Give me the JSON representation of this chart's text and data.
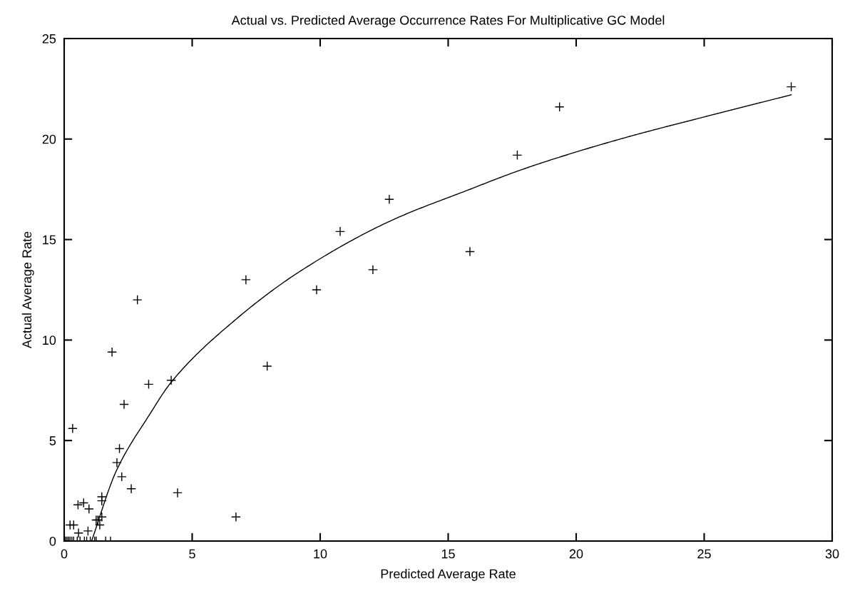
{
  "chart_data": {
    "type": "scatter",
    "title": "Actual vs. Predicted Average Occurrence Rates For Multiplicative GC Model",
    "xlabel": "Predicted Average Rate",
    "ylabel": "Actual Average Rate",
    "xlim": [
      0,
      30
    ],
    "ylim": [
      0,
      25
    ],
    "xticks": [
      0,
      5,
      10,
      15,
      20,
      25,
      30
    ],
    "yticks": [
      0,
      5,
      10,
      15,
      20,
      25
    ],
    "grid": false,
    "legend": false,
    "series": [
      {
        "marker": "cross",
        "color": "#000000",
        "x": [
          28.4,
          19.35,
          17.7,
          12.7,
          10.78,
          15.85,
          12.06,
          9.86,
          7.1,
          7.93,
          2.86,
          1.87,
          3.3,
          4.18,
          2.34,
          0.33,
          2.16,
          2.06,
          2.25,
          2.62,
          4.43,
          1.47,
          1.47,
          0.54,
          0.76,
          0.97,
          1.47,
          1.25,
          1.32,
          1.39,
          0.23,
          0.37,
          0.56,
          0.93,
          6.71,
          0.05,
          0.11,
          0.17,
          0.23,
          0.3,
          0.37,
          0.51,
          0.62,
          0.79,
          0.88,
          1.02,
          1.19,
          1.25,
          1.62,
          1.81
        ],
        "values": [
          22.6,
          21.6,
          19.2,
          17.0,
          15.4,
          14.4,
          13.5,
          12.5,
          13.0,
          8.7,
          12.0,
          9.4,
          7.8,
          8.0,
          6.8,
          5.6,
          4.6,
          3.9,
          3.2,
          2.6,
          2.4,
          2.2,
          2.0,
          1.8,
          1.9,
          1.6,
          1.2,
          1.05,
          1.05,
          0.8,
          0.8,
          0.8,
          0.4,
          0.5,
          1.2,
          0,
          0,
          0,
          0,
          0,
          0,
          0,
          0,
          0,
          0,
          0,
          0,
          0,
          0,
          0
        ]
      },
      {
        "type": "line",
        "marker": "none",
        "line_style": "solid",
        "color": "#000000",
        "x": [
          1.07,
          2.04,
          3.34,
          4.18,
          6.68,
          9.19,
          12.7,
          15.85,
          17.7,
          19.35,
          22,
          25,
          28.4
        ],
        "values": [
          0,
          3.5,
          6.3,
          7.9,
          11.0,
          13.4,
          15.9,
          17.5,
          18.4,
          19.1,
          20.1,
          21.1,
          22.2
        ]
      }
    ]
  }
}
